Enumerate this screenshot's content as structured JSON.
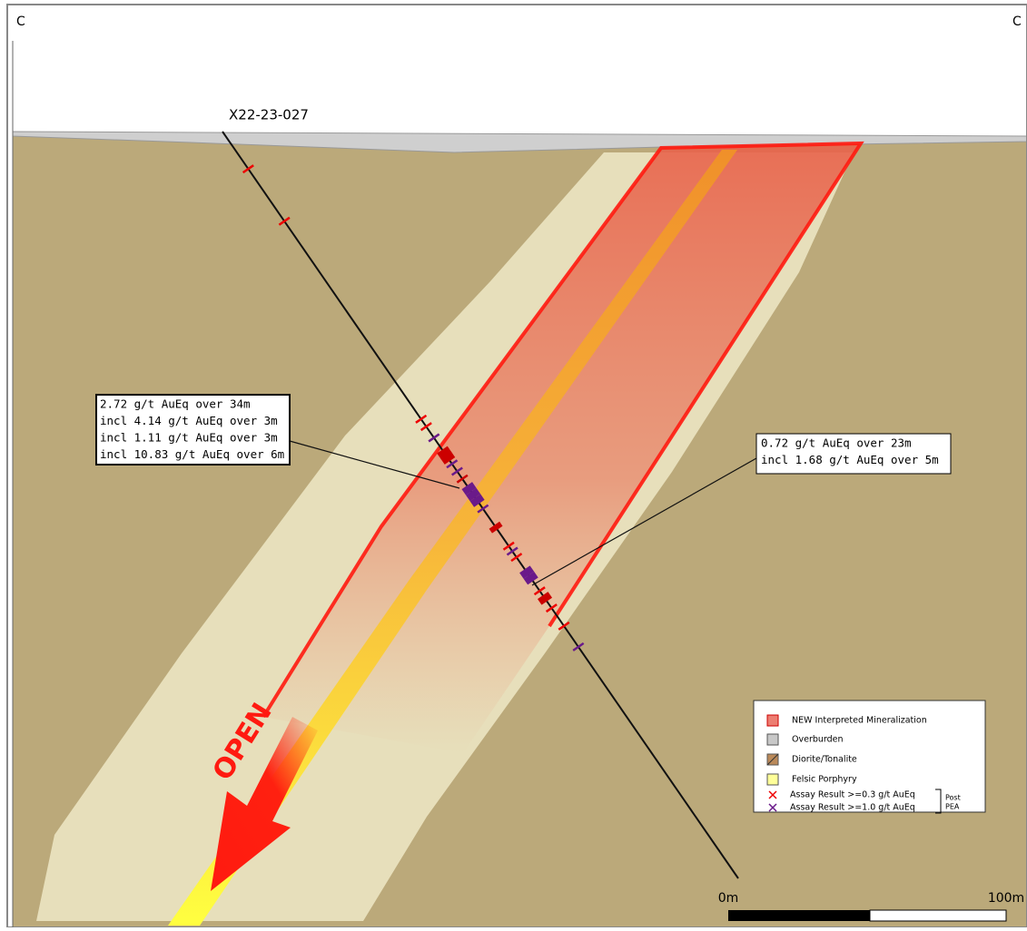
{
  "section_labels": {
    "left": "C",
    "right": "C"
  },
  "drill_hole": {
    "label": "X22-23-027"
  },
  "callouts": [
    {
      "lines": [
        "2.72 g/t AuEq over 34m",
        "incl 4.14 g/t AuEq over 3m",
        "incl 1.11 g/t AuEq over 3m",
        "incl 10.83 g/t AuEq over 6m"
      ]
    },
    {
      "lines": [
        "0.72 g/t AuEq over 23m",
        "incl 1.68 g/t AuEq over 5m"
      ]
    }
  ],
  "annotation": "OPEN",
  "legend": {
    "items": [
      "NEW Interpreted Mineralization",
      "Overburden",
      "Diorite/Tonalite",
      "Felsic Porphyry",
      "Assay Result >=0.3 g/t AuEq",
      "Assay Result >=1.0 g/t AuEq"
    ],
    "bracket_label": [
      "Post",
      "PEA"
    ]
  },
  "scale_bar": {
    "start": "0m",
    "end": "100m"
  }
}
